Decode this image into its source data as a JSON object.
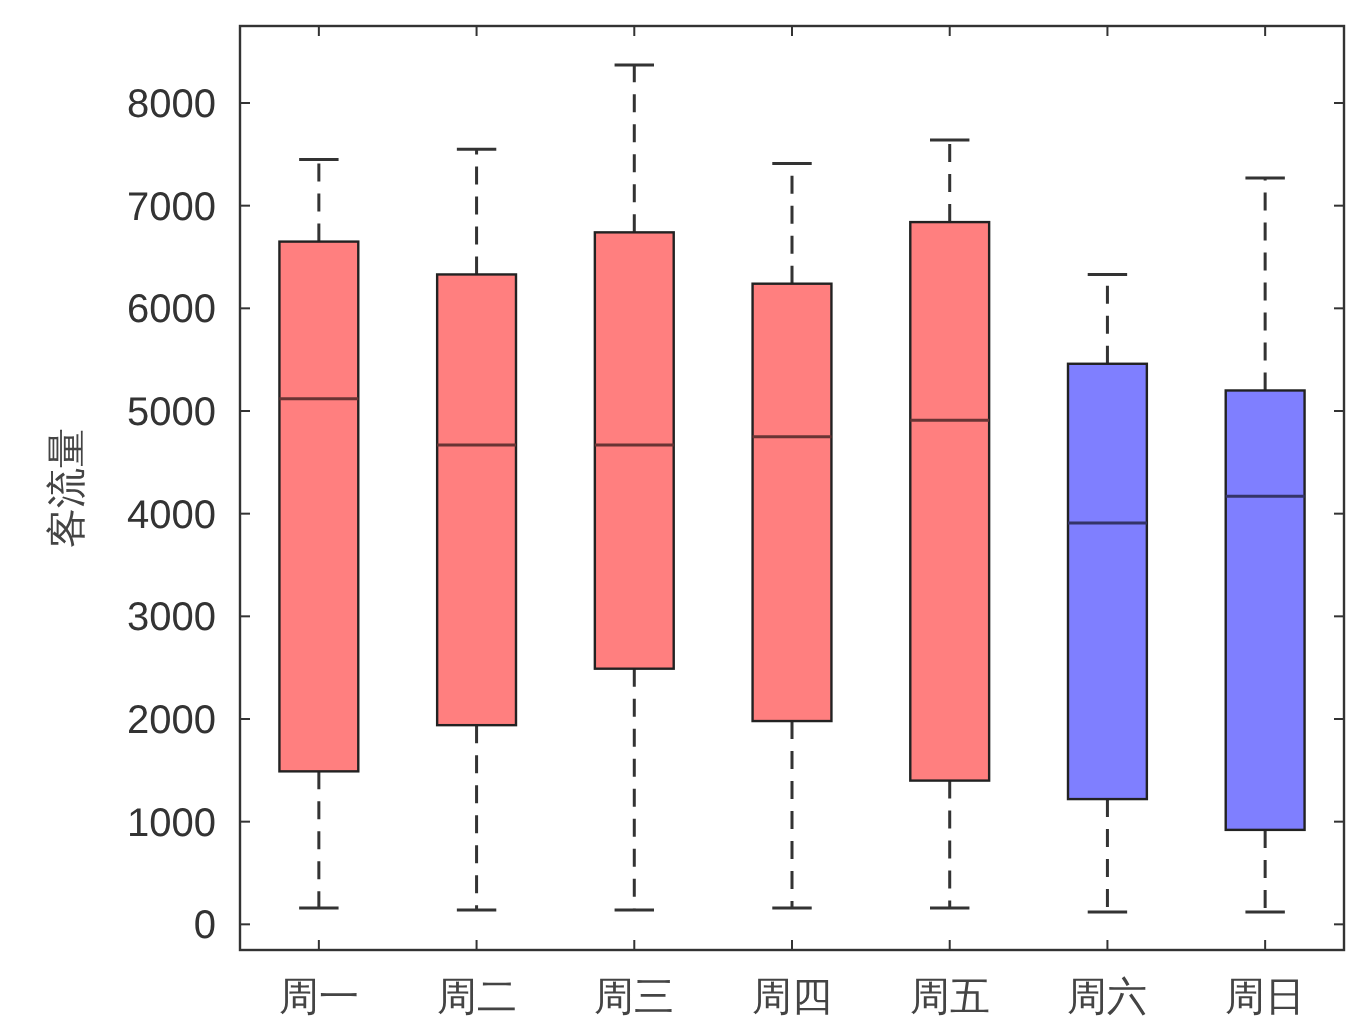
{
  "chart_data": {
    "type": "box",
    "ylabel": "客流量",
    "categories": [
      "周一",
      "周二",
      "周三",
      "周四",
      "周五",
      "周六",
      "周日"
    ],
    "boxes": [
      {
        "low": 160,
        "q1": 1490,
        "median": 5120,
        "q3": 6650,
        "high": 7450
      },
      {
        "low": 140,
        "q1": 1940,
        "median": 4670,
        "q3": 6330,
        "high": 7550
      },
      {
        "low": 140,
        "q1": 2490,
        "median": 4670,
        "q3": 6740,
        "high": 8370
      },
      {
        "low": 160,
        "q1": 1980,
        "median": 4750,
        "q3": 6240,
        "high": 7410
      },
      {
        "low": 160,
        "q1": 1400,
        "median": 4910,
        "q3": 6840,
        "high": 7640
      },
      {
        "low": 120,
        "q1": 1220,
        "median": 3910,
        "q3": 5460,
        "high": 6330
      },
      {
        "low": 120,
        "q1": 920,
        "median": 4170,
        "q3": 5200,
        "high": 7270
      }
    ],
    "colors": [
      "#ff7f7f",
      "#ff7f7f",
      "#ff7f7f",
      "#ff7f7f",
      "#ff7f7f",
      "#7f7fff",
      "#7f7fff"
    ],
    "ylim": [
      -250,
      8750
    ],
    "yticks": [
      0,
      1000,
      2000,
      3000,
      4000,
      5000,
      6000,
      7000,
      8000
    ],
    "grid": false
  }
}
